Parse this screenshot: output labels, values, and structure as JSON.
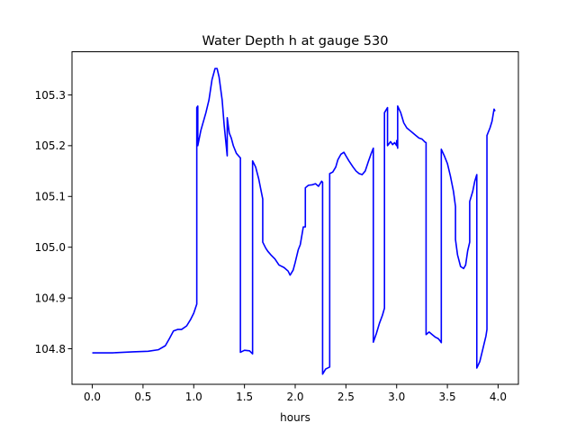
{
  "chart_data": {
    "type": "line",
    "title": "Water Depth h at gauge 530",
    "xlabel": "hours",
    "ylabel": "",
    "xlim": [
      -0.2,
      4.2
    ],
    "ylim": [
      104.73,
      105.385
    ],
    "grid": false,
    "legend": "none",
    "x_ticks": [
      0.0,
      0.5,
      1.0,
      1.5,
      2.0,
      2.5,
      3.0,
      3.5,
      4.0
    ],
    "x_tick_labels": [
      "0.0",
      "0.5",
      "1.0",
      "1.5",
      "2.0",
      "2.5",
      "3.0",
      "3.5",
      "4.0"
    ],
    "y_ticks": [
      104.8,
      104.9,
      105.0,
      105.1,
      105.2,
      105.3
    ],
    "y_tick_labels": [
      "104.8",
      "104.9",
      "105.0",
      "105.1",
      "105.2",
      "105.3"
    ],
    "series": [
      {
        "color": "#0000ff",
        "points": [
          [
            0.0,
            104.792
          ],
          [
            0.2,
            104.792
          ],
          [
            0.4,
            104.794
          ],
          [
            0.55,
            104.795
          ],
          [
            0.65,
            104.798
          ],
          [
            0.72,
            104.806
          ],
          [
            0.76,
            104.82
          ],
          [
            0.8,
            104.835
          ],
          [
            0.84,
            104.838
          ],
          [
            0.88,
            104.838
          ],
          [
            0.93,
            104.845
          ],
          [
            0.97,
            104.858
          ],
          [
            1.0,
            104.87
          ],
          [
            1.03,
            104.888
          ],
          [
            1.03,
            105.275
          ],
          [
            1.04,
            105.278
          ],
          [
            1.04,
            105.2
          ],
          [
            1.07,
            105.23
          ],
          [
            1.12,
            105.265
          ],
          [
            1.15,
            105.29
          ],
          [
            1.18,
            105.33
          ],
          [
            1.21,
            105.352
          ],
          [
            1.23,
            105.352
          ],
          [
            1.25,
            105.335
          ],
          [
            1.28,
            105.29
          ],
          [
            1.3,
            105.24
          ],
          [
            1.32,
            105.2
          ],
          [
            1.33,
            105.18
          ],
          [
            1.33,
            105.255
          ],
          [
            1.35,
            105.225
          ],
          [
            1.37,
            105.215
          ],
          [
            1.39,
            105.2
          ],
          [
            1.42,
            105.185
          ],
          [
            1.45,
            105.178
          ],
          [
            1.46,
            105.176
          ],
          [
            1.46,
            104.793
          ],
          [
            1.5,
            104.797
          ],
          [
            1.55,
            104.796
          ],
          [
            1.58,
            104.79
          ],
          [
            1.58,
            105.17
          ],
          [
            1.61,
            105.158
          ],
          [
            1.64,
            105.135
          ],
          [
            1.66,
            105.115
          ],
          [
            1.68,
            105.095
          ],
          [
            1.68,
            105.01
          ],
          [
            1.71,
            104.998
          ],
          [
            1.73,
            104.992
          ],
          [
            1.76,
            104.985
          ],
          [
            1.8,
            104.977
          ],
          [
            1.84,
            104.965
          ],
          [
            1.86,
            104.963
          ],
          [
            1.89,
            104.96
          ],
          [
            1.93,
            104.953
          ],
          [
            1.95,
            104.945
          ],
          [
            1.98,
            104.955
          ],
          [
            2.0,
            104.97
          ],
          [
            2.03,
            104.995
          ],
          [
            2.05,
            105.005
          ],
          [
            2.08,
            105.04
          ],
          [
            2.1,
            105.04
          ],
          [
            2.1,
            105.117
          ],
          [
            2.13,
            105.122
          ],
          [
            2.17,
            105.123
          ],
          [
            2.2,
            105.125
          ],
          [
            2.23,
            105.12
          ],
          [
            2.26,
            105.13
          ],
          [
            2.27,
            105.128
          ],
          [
            2.27,
            104.75
          ],
          [
            2.3,
            104.76
          ],
          [
            2.34,
            104.764
          ],
          [
            2.34,
            105.145
          ],
          [
            2.37,
            105.148
          ],
          [
            2.4,
            105.158
          ],
          [
            2.42,
            105.172
          ],
          [
            2.45,
            105.183
          ],
          [
            2.48,
            105.187
          ],
          [
            2.5,
            105.18
          ],
          [
            2.53,
            105.17
          ],
          [
            2.57,
            105.158
          ],
          [
            2.6,
            105.15
          ],
          [
            2.63,
            105.145
          ],
          [
            2.66,
            105.143
          ],
          [
            2.69,
            105.15
          ],
          [
            2.72,
            105.168
          ],
          [
            2.75,
            105.185
          ],
          [
            2.77,
            105.195
          ],
          [
            2.77,
            104.813
          ],
          [
            2.8,
            104.83
          ],
          [
            2.83,
            104.85
          ],
          [
            2.86,
            104.866
          ],
          [
            2.88,
            104.88
          ],
          [
            2.88,
            105.265
          ],
          [
            2.91,
            105.275
          ],
          [
            2.91,
            105.2
          ],
          [
            2.94,
            105.208
          ],
          [
            2.96,
            105.202
          ],
          [
            2.98,
            105.206
          ],
          [
            3.0,
            105.2
          ],
          [
            3.0,
            105.21
          ],
          [
            3.01,
            105.195
          ],
          [
            3.01,
            105.278
          ],
          [
            3.04,
            105.265
          ],
          [
            3.07,
            105.245
          ],
          [
            3.1,
            105.235
          ],
          [
            3.13,
            105.23
          ],
          [
            3.16,
            105.225
          ],
          [
            3.19,
            105.22
          ],
          [
            3.22,
            105.215
          ],
          [
            3.25,
            105.213
          ],
          [
            3.28,
            105.207
          ],
          [
            3.29,
            105.206
          ],
          [
            3.29,
            104.828
          ],
          [
            3.32,
            104.833
          ],
          [
            3.35,
            104.828
          ],
          [
            3.38,
            104.823
          ],
          [
            3.41,
            104.82
          ],
          [
            3.43,
            104.815
          ],
          [
            3.44,
            104.812
          ],
          [
            3.44,
            105.193
          ],
          [
            3.47,
            105.18
          ],
          [
            3.5,
            105.165
          ],
          [
            3.53,
            105.14
          ],
          [
            3.56,
            105.11
          ],
          [
            3.58,
            105.08
          ],
          [
            3.58,
            105.015
          ],
          [
            3.6,
            104.985
          ],
          [
            3.63,
            104.962
          ],
          [
            3.66,
            104.958
          ],
          [
            3.68,
            104.965
          ],
          [
            3.7,
            104.993
          ],
          [
            3.72,
            105.01
          ],
          [
            3.72,
            105.09
          ],
          [
            3.75,
            105.11
          ],
          [
            3.77,
            105.13
          ],
          [
            3.79,
            105.143
          ],
          [
            3.79,
            104.762
          ],
          [
            3.82,
            104.775
          ],
          [
            3.85,
            104.8
          ],
          [
            3.88,
            104.825
          ],
          [
            3.89,
            104.838
          ],
          [
            3.89,
            105.22
          ],
          [
            3.92,
            105.235
          ],
          [
            3.94,
            105.248
          ],
          [
            3.96,
            105.272
          ],
          [
            3.97,
            105.268
          ]
        ]
      }
    ]
  }
}
